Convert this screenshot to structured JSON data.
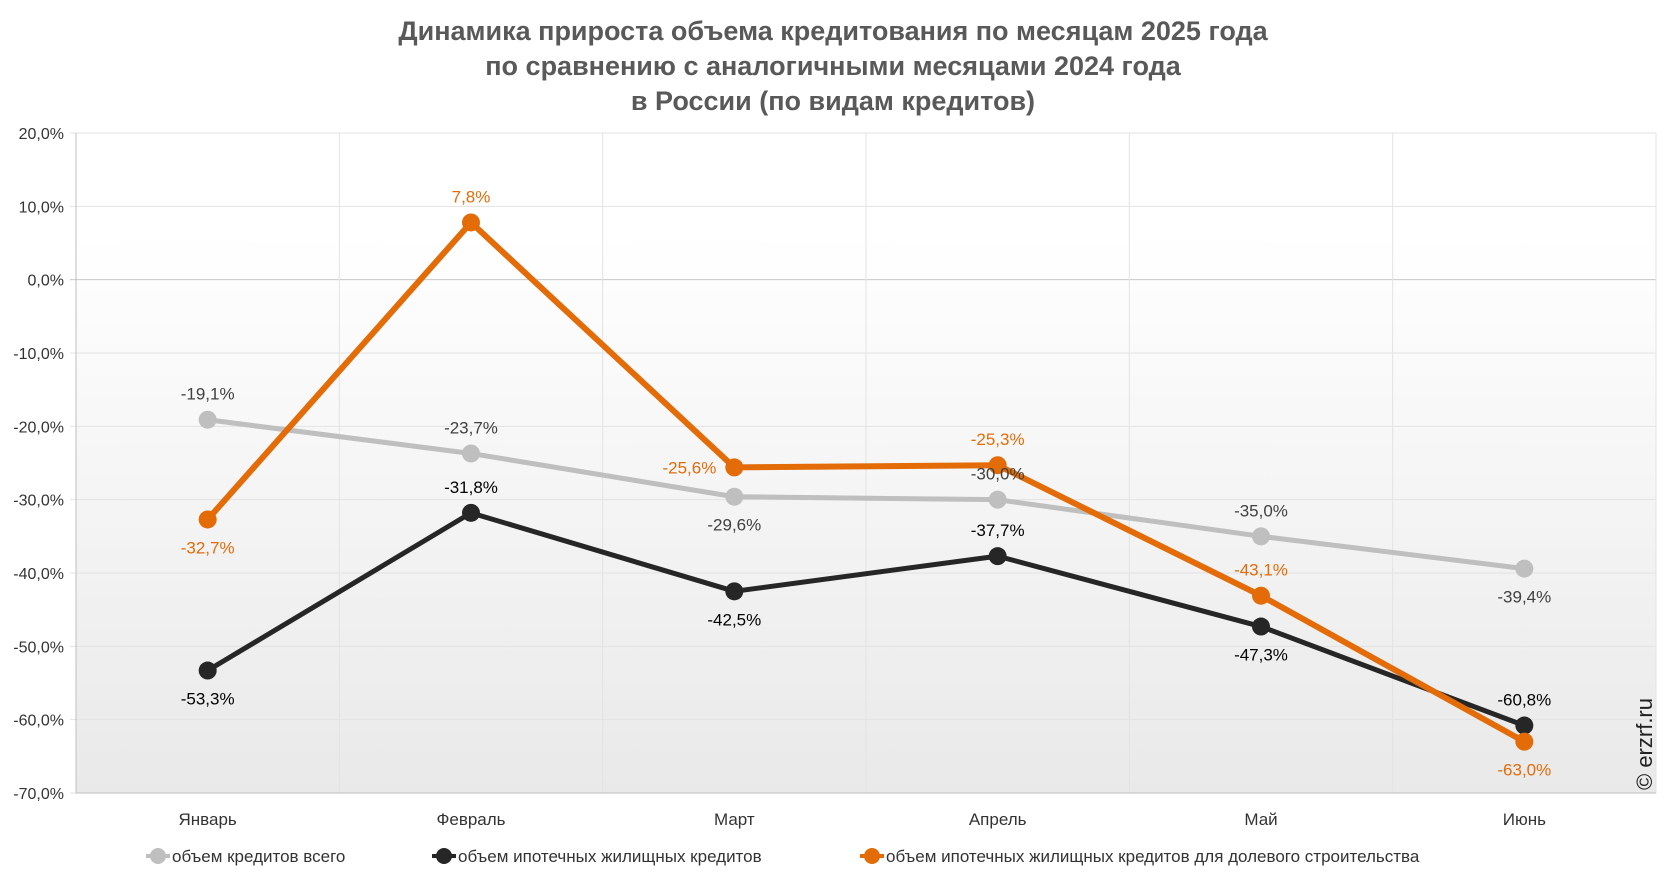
{
  "chart_data": {
    "type": "line",
    "title_lines": [
      "Динамика прироста объема кредитования по месяцам 2025 года",
      "по сравнению с аналогичными месяцами 2024 года",
      "в России (по видам кредитов)"
    ],
    "categories": [
      "Январь",
      "Февраль",
      "Март",
      "Апрель",
      "Май",
      "Июнь"
    ],
    "ylim": [
      -70,
      20
    ],
    "yticks": [
      20,
      10,
      0,
      -10,
      -20,
      -30,
      -40,
      -50,
      -60,
      -70
    ],
    "ytick_labels": [
      "20,0%",
      "10,0%",
      "0,0%",
      "-10,0%",
      "-20,0%",
      "-30,0%",
      "-40,0%",
      "-50,0%",
      "-60,0%",
      "-70,0%"
    ],
    "series": [
      {
        "name": "объем кредитов всего",
        "color": "#bfbfbf",
        "label_color": "#404040",
        "values": [
          -19.1,
          -23.7,
          -29.6,
          -30.0,
          -35.0,
          -39.4
        ],
        "labels": [
          "-19,1%",
          "-23,7%",
          "-29,6%",
          "-30,0%",
          "-35,0%",
          "-39,4%"
        ]
      },
      {
        "name": "объем ипотечных жилищных кредитов",
        "color": "#262626",
        "label_color": "#000000",
        "values": [
          -53.3,
          -31.8,
          -42.5,
          -37.7,
          -47.3,
          -60.8
        ],
        "labels": [
          "-53,3%",
          "-31,8%",
          "-42,5%",
          "-37,7%",
          "-47,3%",
          "-60,8%"
        ]
      },
      {
        "name": "объем ипотечных жилищных кредитов для долевого строительства",
        "color": "#e36c09",
        "label_color": "#e36c09",
        "values": [
          -32.7,
          7.8,
          -25.6,
          -25.3,
          -43.1,
          -63.0
        ],
        "labels": [
          "-32,7%",
          "7,8%",
          "-25,6%",
          "-25,3%",
          "-43,1%",
          "-63,0%"
        ]
      }
    ],
    "grid": true,
    "legend_position": "bottom"
  },
  "watermark": "© erzrf.ru"
}
